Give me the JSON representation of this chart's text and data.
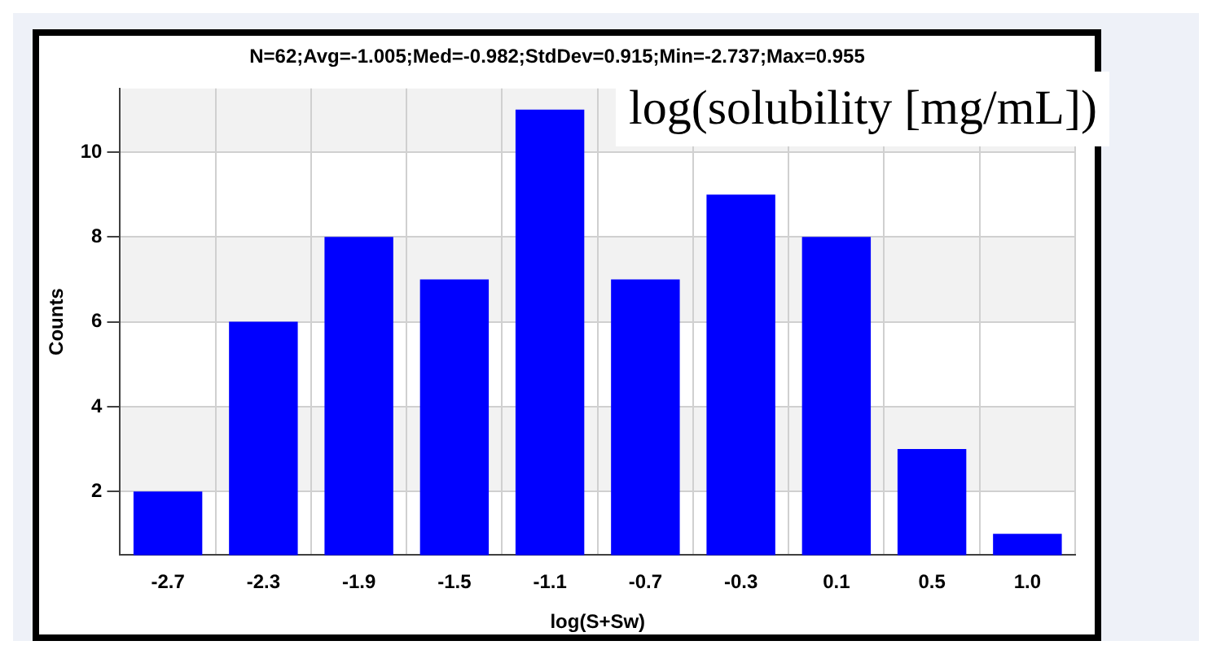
{
  "chart_data": {
    "type": "bar",
    "title": "N=62;Avg=-1.005;Med=-0.982;StdDev=0.915;Min=-2.737;Max=0.955",
    "xlabel": "log(S+Sw)",
    "ylabel": "Counts",
    "annotations": [
      "log(solubility [mg/mL])"
    ],
    "categories": [
      "-2.7",
      "-2.3",
      "-1.9",
      "-1.5",
      "-1.1",
      "-0.7",
      "-0.3",
      "0.1",
      "0.5",
      "1.0"
    ],
    "values": [
      2,
      6,
      8,
      7,
      11,
      7,
      9,
      8,
      3,
      1
    ],
    "color": "#0000ff",
    "ylim": [
      0.5,
      11.5
    ],
    "yticks": [
      2,
      4,
      6,
      8,
      10
    ],
    "grid": true,
    "legend": false
  }
}
